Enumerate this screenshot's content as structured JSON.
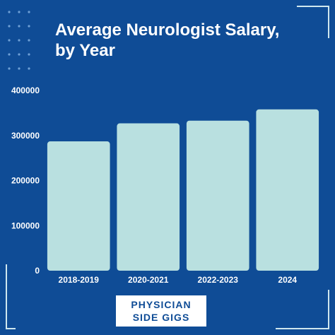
{
  "colors": {
    "background": "#0f4c96",
    "bar": "#b9e0e0",
    "text": "#ffffff",
    "logo_text": "#0f4c96"
  },
  "chart_data": {
    "type": "bar",
    "title": "Average Neurologist Salary, by Year",
    "xlabel": "",
    "ylabel": "",
    "categories": [
      "2018-2019",
      "2020-2021",
      "2022-2023",
      "2024"
    ],
    "values": [
      287000,
      327000,
      333000,
      358000
    ],
    "ylim": [
      0,
      400000
    ],
    "yticks": [
      "0",
      "100000",
      "200000",
      "300000",
      "400000"
    ],
    "grid": false,
    "legend": "none"
  },
  "logo": {
    "line1": "PHYSICIAN",
    "line2": "SIDE GIGS"
  }
}
